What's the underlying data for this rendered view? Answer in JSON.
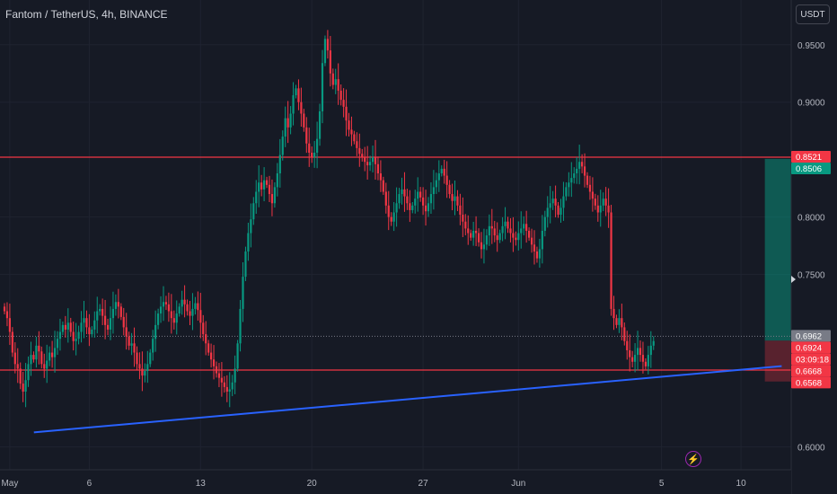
{
  "header": {
    "title": "Fantom / TetherUS, 4h, BINANCE",
    "currency_button": "USDT"
  },
  "chart_data": {
    "type": "candlestick",
    "symbol": "Fantom / TetherUS",
    "interval": "4h",
    "exchange": "BINANCE",
    "ylim": [
      0.58,
      0.985
    ],
    "y_ticks": [
      "0.6000",
      "0.7500",
      "0.8000",
      "0.9000",
      "0.9500"
    ],
    "y_tick_values": [
      0.6,
      0.75,
      0.8,
      0.9,
      0.95
    ],
    "x_ticks": [
      {
        "label": "May",
        "index": 2
      },
      {
        "label": "6",
        "index": 32
      },
      {
        "label": "13",
        "index": 74
      },
      {
        "label": "20",
        "index": 116
      },
      {
        "label": "27",
        "index": 158
      },
      {
        "label": "Jun",
        "index": 194
      },
      {
        "label": "5",
        "index": 248
      },
      {
        "label": "10",
        "index": 278
      }
    ],
    "candles_close": [
      0.718,
      0.712,
      0.7,
      0.682,
      0.672,
      0.668,
      0.655,
      0.648,
      0.658,
      0.672,
      0.68,
      0.676,
      0.688,
      0.683,
      0.672,
      0.668,
      0.675,
      0.682,
      0.678,
      0.686,
      0.694,
      0.7,
      0.706,
      0.702,
      0.708,
      0.7,
      0.692,
      0.694,
      0.7,
      0.708,
      0.712,
      0.704,
      0.698,
      0.702,
      0.71,
      0.718,
      0.72,
      0.714,
      0.706,
      0.702,
      0.712,
      0.72,
      0.726,
      0.722,
      0.713,
      0.704,
      0.696,
      0.688,
      0.69,
      0.682,
      0.672,
      0.668,
      0.662,
      0.666,
      0.672,
      0.682,
      0.694,
      0.706,
      0.716,
      0.722,
      0.726,
      0.724,
      0.718,
      0.712,
      0.708,
      0.716,
      0.722,
      0.728,
      0.724,
      0.718,
      0.714,
      0.72,
      0.725,
      0.719,
      0.708,
      0.698,
      0.69,
      0.682,
      0.676,
      0.67,
      0.664,
      0.66,
      0.656,
      0.652,
      0.648,
      0.65,
      0.656,
      0.668,
      0.69,
      0.72,
      0.748,
      0.77,
      0.786,
      0.798,
      0.812,
      0.822,
      0.83,
      0.824,
      0.832,
      0.828,
      0.82,
      0.812,
      0.826,
      0.838,
      0.854,
      0.87,
      0.886,
      0.878,
      0.89,
      0.906,
      0.912,
      0.9,
      0.89,
      0.878,
      0.864,
      0.856,
      0.852,
      0.856,
      0.868,
      0.892,
      0.934,
      0.955,
      0.945,
      0.925,
      0.915,
      0.92,
      0.91,
      0.902,
      0.896,
      0.884,
      0.876,
      0.872,
      0.866,
      0.86,
      0.855,
      0.852,
      0.848,
      0.845,
      0.848,
      0.852,
      0.846,
      0.838,
      0.832,
      0.822,
      0.81,
      0.8,
      0.796,
      0.804,
      0.812,
      0.82,
      0.824,
      0.818,
      0.812,
      0.806,
      0.81,
      0.816,
      0.822,
      0.817,
      0.81,
      0.805,
      0.812,
      0.82,
      0.826,
      0.832,
      0.838,
      0.842,
      0.836,
      0.828,
      0.82,
      0.814,
      0.818,
      0.81,
      0.802,
      0.796,
      0.79,
      0.786,
      0.782,
      0.788,
      0.786,
      0.778,
      0.772,
      0.776,
      0.784,
      0.792,
      0.79,
      0.784,
      0.78,
      0.786,
      0.792,
      0.796,
      0.79,
      0.786,
      0.782,
      0.78,
      0.786,
      0.79,
      0.794,
      0.788,
      0.782,
      0.776,
      0.77,
      0.764,
      0.772,
      0.788,
      0.8,
      0.808,
      0.812,
      0.816,
      0.81,
      0.802,
      0.808,
      0.818,
      0.826,
      0.83,
      0.834,
      0.838,
      0.842,
      0.848,
      0.844,
      0.836,
      0.828,
      0.822,
      0.816,
      0.81,
      0.804,
      0.81,
      0.816,
      0.81,
      0.804,
      0.72,
      0.712,
      0.706,
      0.712,
      0.704,
      0.692,
      0.684,
      0.678,
      0.674,
      0.68,
      0.686,
      0.68,
      0.674,
      0.67,
      0.68,
      0.688,
      0.692
    ],
    "price_labels": [
      {
        "value": "0.8521",
        "y": 0.8521,
        "bg": "#f23645"
      },
      {
        "value": "0.8506",
        "y": 0.8506,
        "bg": "#089981"
      },
      {
        "value": "0.6962",
        "y": 0.6962,
        "bg": "#787b86"
      },
      {
        "value": "0.6924",
        "y": 0.6924,
        "bg": "#f23645"
      },
      {
        "value": "03:09:18",
        "y": 0.6834,
        "bg": "#f23645"
      },
      {
        "value": "0.6668",
        "y": 0.6668,
        "bg": "#f23645"
      },
      {
        "value": "0.6568",
        "y": 0.6568,
        "bg": "#f23645"
      }
    ],
    "horizontal_lines": [
      0.8521,
      0.6668
    ],
    "trendline": {
      "from": {
        "index": 5,
        "y": 0.6125
      },
      "to": {
        "index": 292,
        "y": 0.6702
      }
    },
    "position": {
      "start_index": 287,
      "entry": 0.6924,
      "target": 0.8506,
      "stop": 0.6568
    },
    "colors": {
      "up": "#089981",
      "down": "#f23645",
      "trend": "#2962ff",
      "grid": "#1f2330"
    }
  }
}
